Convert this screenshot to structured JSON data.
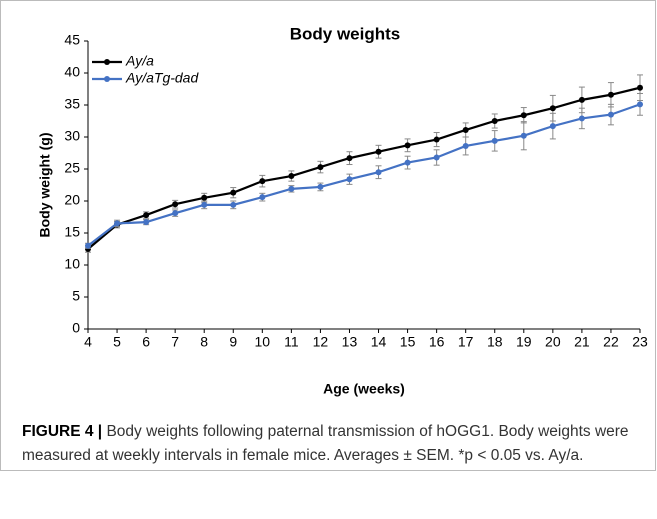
{
  "chart_data": {
    "type": "line",
    "title": "Body weights",
    "xlabel": "Age (weeks)",
    "ylabel": "Body weight (g)",
    "x": [
      4,
      5,
      6,
      7,
      8,
      9,
      10,
      11,
      12,
      13,
      14,
      15,
      16,
      17,
      18,
      19,
      20,
      21,
      22,
      23
    ],
    "xlim": [
      4,
      23
    ],
    "xticks": [
      4,
      5,
      6,
      7,
      8,
      9,
      10,
      11,
      12,
      13,
      14,
      15,
      16,
      17,
      18,
      19,
      20,
      21,
      22,
      23
    ],
    "ylim": [
      0,
      45
    ],
    "yticks": [
      0,
      5,
      10,
      15,
      20,
      25,
      30,
      35,
      40,
      45
    ],
    "legend": "upper left",
    "series": [
      {
        "name": "Ay/a",
        "color": "#000000",
        "values": [
          12.5,
          16.3,
          17.8,
          19.5,
          20.5,
          21.3,
          23.1,
          23.9,
          25.3,
          26.7,
          27.7,
          28.7,
          29.6,
          31.1,
          32.5,
          33.4,
          34.5,
          35.8,
          36.6,
          37.7
        ],
        "errors": [
          0.5,
          0.5,
          0.5,
          0.6,
          0.7,
          0.8,
          0.9,
          0.8,
          0.9,
          1.0,
          1.0,
          1.0,
          1.1,
          1.1,
          1.1,
          1.2,
          2.0,
          2.0,
          1.9,
          2.0
        ]
      },
      {
        "name": "Ay/aTg-dad",
        "color": "#4472c4",
        "values": [
          13.0,
          16.5,
          16.7,
          18.1,
          19.4,
          19.4,
          20.6,
          21.9,
          22.2,
          23.4,
          24.5,
          26.0,
          26.8,
          28.6,
          29.4,
          30.2,
          31.7,
          32.9,
          33.5,
          35.1
        ],
        "errors": [
          0.4,
          0.5,
          0.4,
          0.5,
          0.6,
          0.6,
          0.6,
          0.5,
          0.6,
          0.8,
          1.0,
          1.0,
          1.2,
          1.4,
          1.6,
          2.2,
          2.0,
          1.6,
          1.6,
          1.7
        ]
      }
    ]
  },
  "caption": {
    "label": "FIGURE 4 |",
    "text": "Body weights following paternal transmission of hOGG1. Body weights were measured at weekly intervals in female mice. Averages ± SEM. *p < 0.05 vs. Ay/a."
  }
}
